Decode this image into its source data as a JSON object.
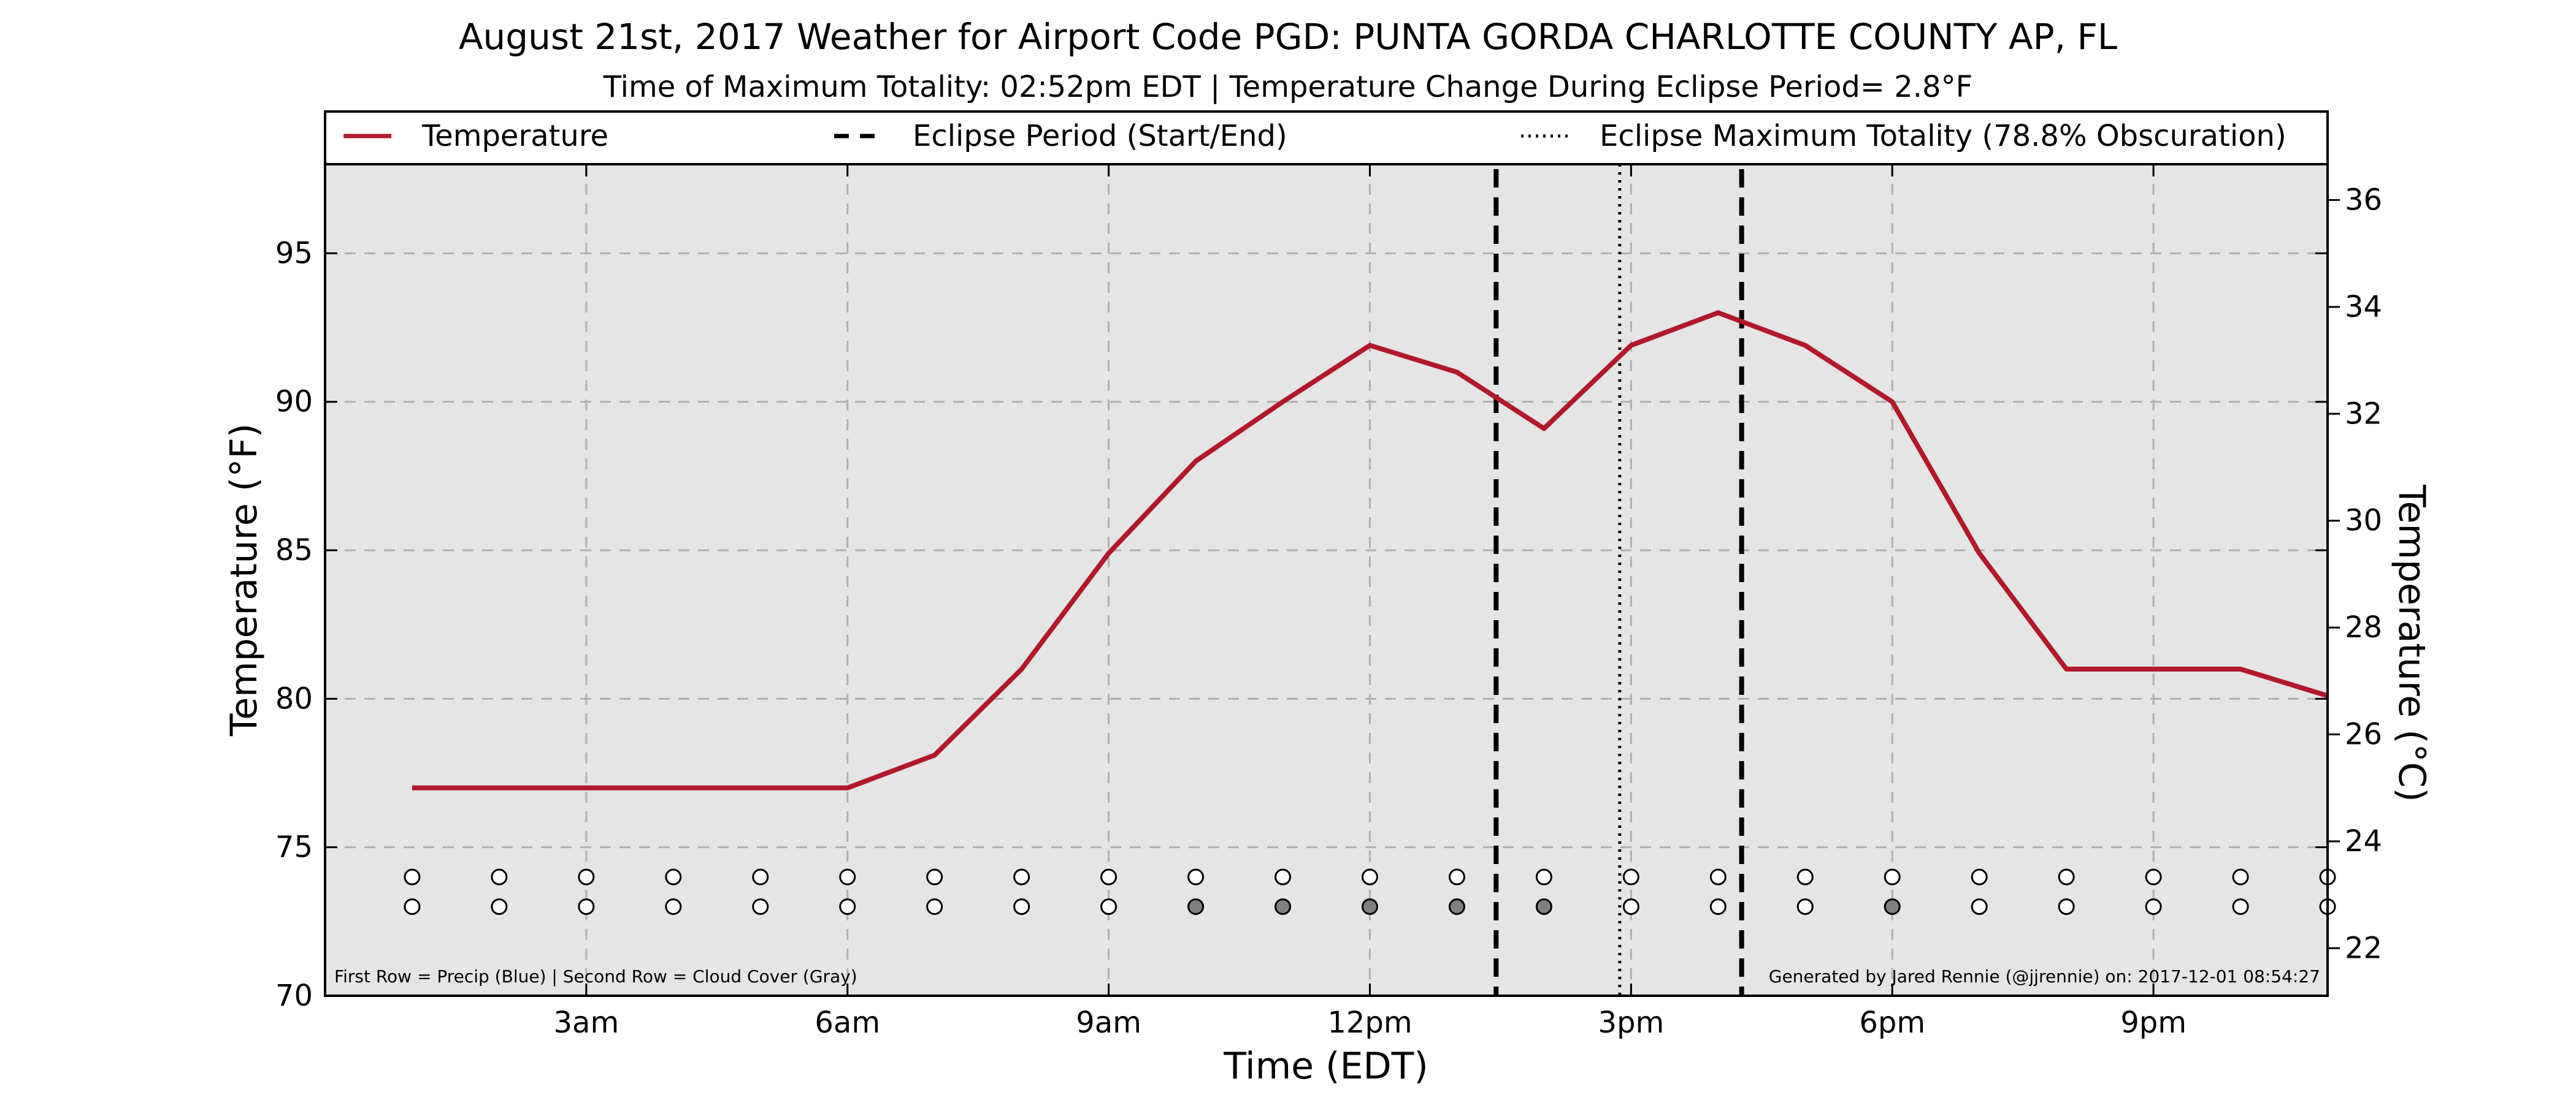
{
  "chart_data": {
    "type": "line",
    "title": "August 21st, 2017 Weather for Airport Code PGD: PUNTA GORDA CHARLOTTE COUNTY AP, FL",
    "subtitle": "Time of Maximum Totality: 02:52pm EDT | Temperature Change During Eclipse Period= 2.8°F",
    "xlabel": "Time (EDT)",
    "ylabel": "Temperature (°F)",
    "ylabel_right": "Temperature (°C)",
    "xlim": [
      0,
      23
    ],
    "ylim": [
      70,
      98
    ],
    "ylim_right": [
      21.11,
      36.67
    ],
    "grid": true,
    "legend_position": "top",
    "x_ticks": [
      {
        "x": 3,
        "label": "3am"
      },
      {
        "x": 6,
        "label": "6am"
      },
      {
        "x": 9,
        "label": "9am"
      },
      {
        "x": 12,
        "label": "12pm"
      },
      {
        "x": 15,
        "label": "3pm"
      },
      {
        "x": 18,
        "label": "6pm"
      },
      {
        "x": 21,
        "label": "9pm"
      }
    ],
    "y_ticks": [
      70,
      75,
      80,
      85,
      90,
      95
    ],
    "y_ticks_right": [
      22,
      24,
      26,
      28,
      30,
      32,
      34,
      36
    ],
    "legend": [
      {
        "label": "Temperature",
        "style": "solid"
      },
      {
        "label": "Eclipse Period (Start/End)",
        "style": "dashed"
      },
      {
        "label": "Eclipse Maximum Totality (78.8% Obscuration)",
        "style": "dotted"
      }
    ],
    "series": [
      {
        "name": "Temperature",
        "color": "#b2182b",
        "x": [
          1,
          2,
          3,
          4,
          5,
          6,
          7,
          8,
          9,
          10,
          11,
          12,
          13,
          14,
          15,
          16,
          17,
          18,
          19,
          20,
          21,
          22,
          23
        ],
        "values": [
          77,
          77,
          77,
          77,
          77,
          77,
          78.1,
          81,
          84.9,
          88,
          90,
          91.9,
          91,
          89.1,
          91.9,
          93,
          91.9,
          90,
          84.9,
          81,
          81,
          81,
          80.1
        ]
      }
    ],
    "eclipse_start": 13.45,
    "eclipse_end": 16.27,
    "eclipse_max": 14.87,
    "markers": {
      "x": [
        1,
        2,
        3,
        4,
        5,
        6,
        7,
        8,
        9,
        10,
        11,
        12,
        13,
        14,
        15,
        16,
        17,
        18,
        19,
        20,
        21,
        22,
        23
      ],
      "precip_row_value": 74,
      "cloud_row_value": 73,
      "precip_fill": [
        "white",
        "white",
        "white",
        "white",
        "white",
        "white",
        "white",
        "white",
        "white",
        "white",
        "white",
        "white",
        "white",
        "white",
        "white",
        "white",
        "white",
        "white",
        "white",
        "white",
        "white",
        "white",
        "white"
      ],
      "cloud_fill": [
        "white",
        "white",
        "white",
        "white",
        "white",
        "white",
        "white",
        "white",
        "white",
        "gray",
        "gray",
        "gray",
        "gray",
        "gray",
        "white",
        "white",
        "white",
        "gray",
        "white",
        "white",
        "white",
        "white",
        "white"
      ]
    },
    "footnote_left": "First Row = Precip (Blue) | Second Row = Cloud Cover (Gray)",
    "footnote_right": "Generated by Jared Rennie (@jjrennie) on: 2017-12-01 08:54:27",
    "colors": {
      "plot_background": "#e5e5e5",
      "grid": "#b0b0b0",
      "temperature_line": "#b2182b",
      "cloud_gray": "#808080"
    }
  }
}
